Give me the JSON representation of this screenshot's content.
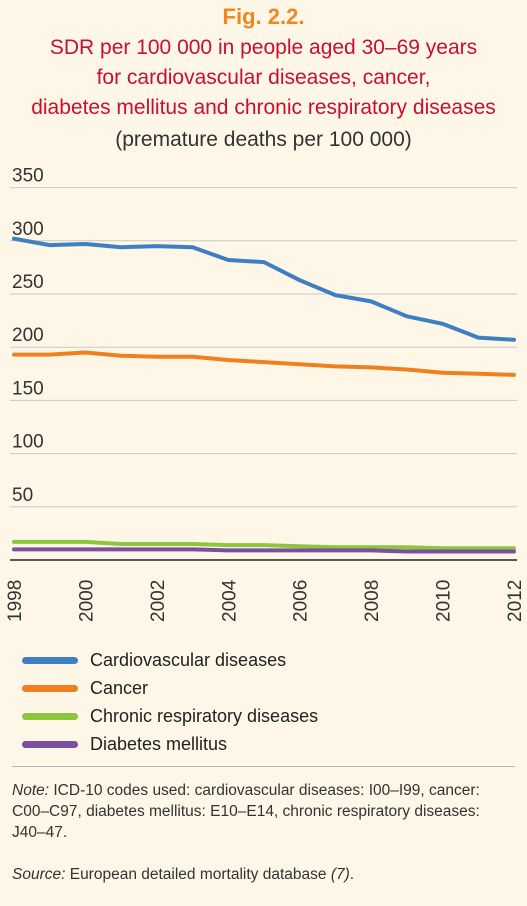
{
  "figure": {
    "label": "Fig. 2.2.",
    "title_lines": [
      "SDR per 100 000 in people aged 30–69 years",
      "for cardiovascular diseases, cancer,",
      "diabetes mellitus and chronic respiratory diseases"
    ],
    "subtitle": "(premature deaths per 100 000)"
  },
  "chart_data": {
    "type": "line",
    "title": "SDR per 100 000 in people aged 30–69 years for cardiovascular diseases, cancer, diabetes mellitus and chronic respiratory diseases",
    "subtitle": "(premature deaths per 100 000)",
    "xlabel": "",
    "ylabel": "",
    "x": [
      1998,
      1999,
      2000,
      2001,
      2002,
      2003,
      2004,
      2005,
      2006,
      2007,
      2008,
      2009,
      2010,
      2011,
      2012
    ],
    "xticks": [
      "1998",
      "2000",
      "2002",
      "2004",
      "2006",
      "2008",
      "2010",
      "2012"
    ],
    "yticks": [
      "50",
      "100",
      "150",
      "200",
      "250",
      "300",
      "350"
    ],
    "ylim": [
      0,
      350
    ],
    "xlim": [
      1998,
      2012
    ],
    "grid": "horizontal",
    "legend_position": "bottom",
    "series": [
      {
        "name": "Cardiovascular diseases",
        "color": "#3f7fc1",
        "values": [
          302,
          296,
          297,
          294,
          295,
          294,
          282,
          280,
          263,
          249,
          243,
          229,
          222,
          209,
          207
        ]
      },
      {
        "name": "Cancer",
        "color": "#f0801e",
        "values": [
          193,
          193,
          195,
          192,
          191,
          191,
          188,
          186,
          184,
          182,
          181,
          179,
          176,
          175,
          174
        ]
      },
      {
        "name": "Chronic respiratory diseases",
        "color": "#8cc63e",
        "values": [
          17,
          17,
          17,
          15,
          15,
          15,
          14,
          14,
          13,
          12,
          12,
          12,
          11,
          11,
          11
        ]
      },
      {
        "name": "Diabetes mellitus",
        "color": "#7c4f9e",
        "values": [
          10,
          10,
          10,
          10,
          10,
          10,
          9,
          9,
          9,
          9,
          9,
          8,
          8,
          8,
          8
        ]
      }
    ]
  },
  "notes": {
    "note_label": "Note:",
    "note_text": " ICD-10 codes used: cardiovascular diseases: I00–I99, cancer: C00–C97, diabetes mellitus: E10–E14, chronic respiratory diseases: J40–47.",
    "source_label": "Source:",
    "source_text": " European detailed mortality database ",
    "source_ref": "(7)",
    "source_end": "."
  }
}
